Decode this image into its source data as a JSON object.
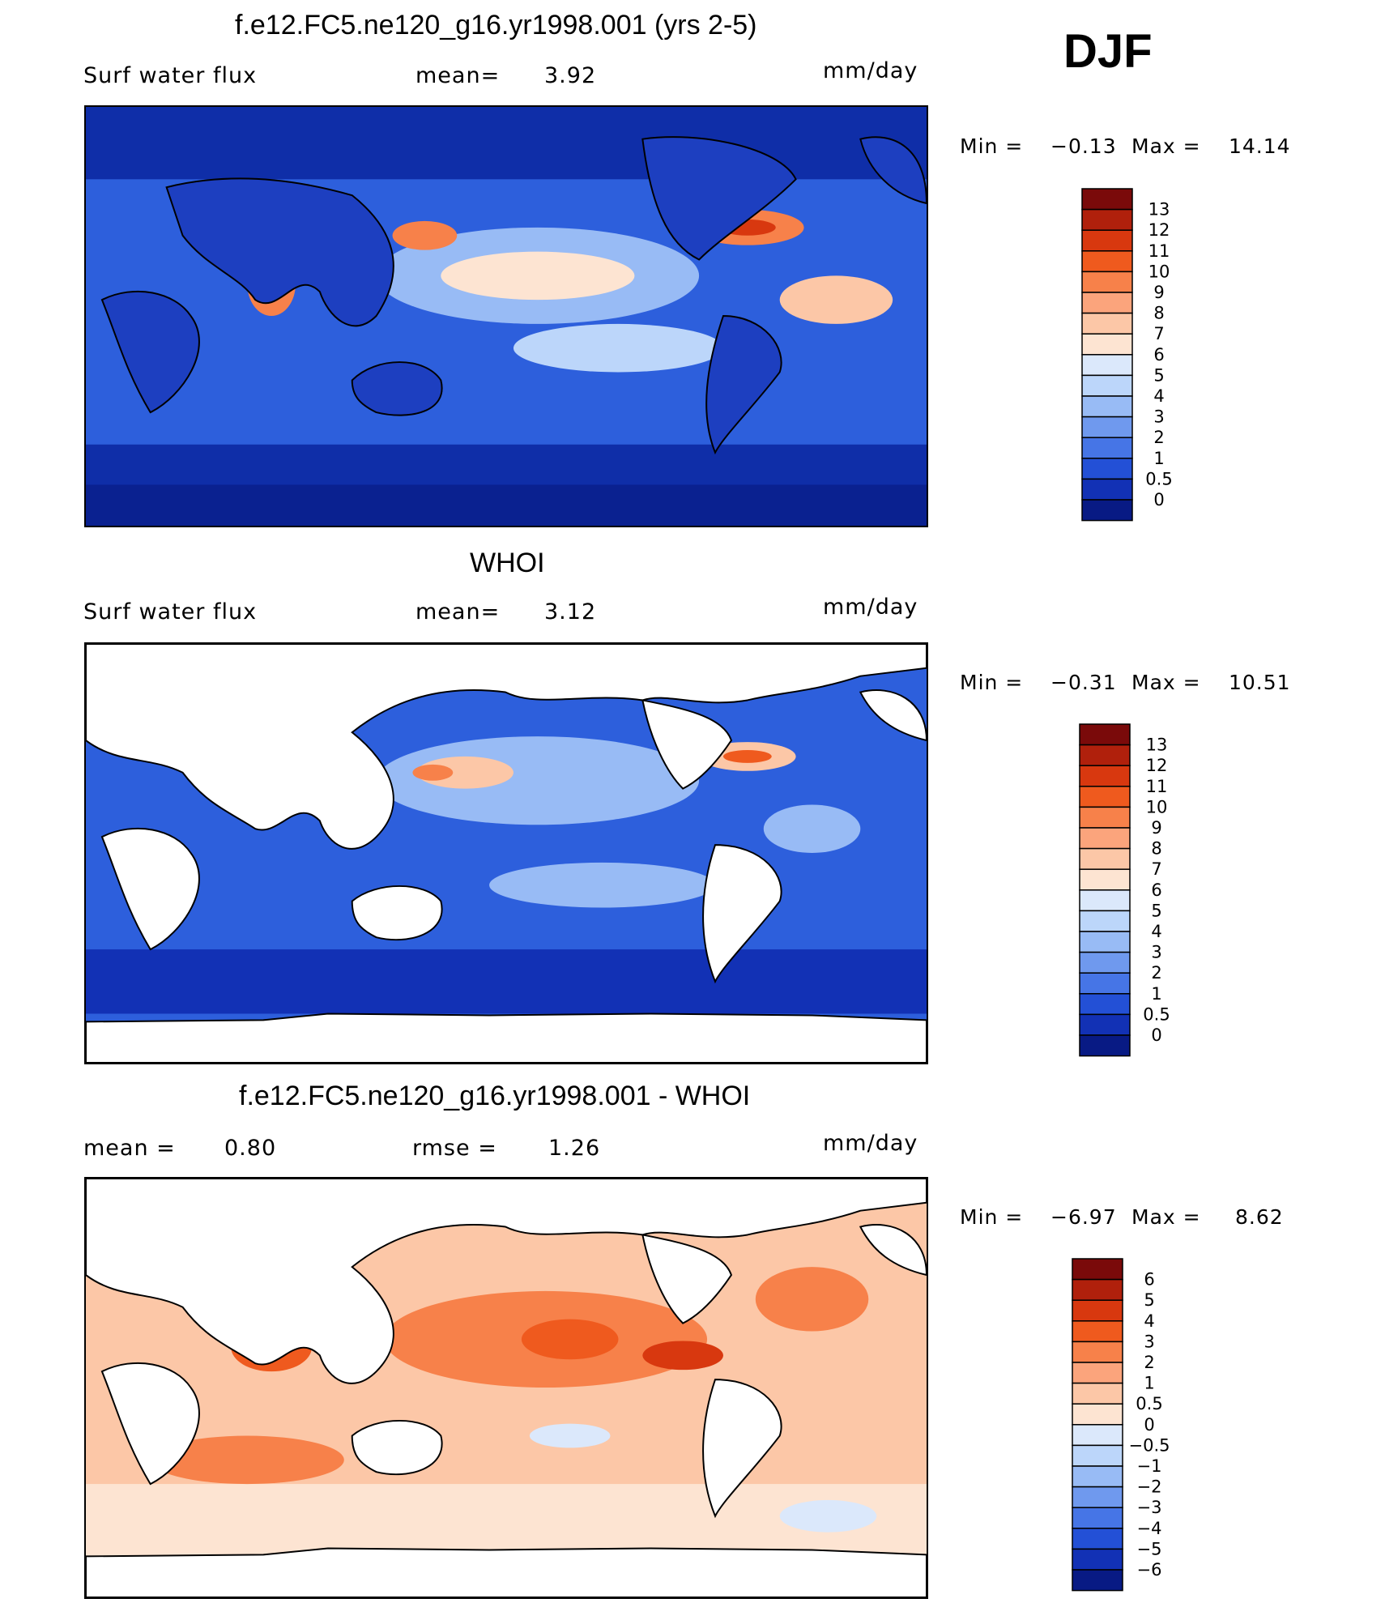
{
  "season": "DJF",
  "panels": [
    {
      "title": "f.e12.FC5.ne120_g16.yr1998.001 (yrs 2-5)",
      "left_label": "Surf  water  flux",
      "mid_label": "mean=",
      "mid_value": "3.92",
      "units": "mm/day",
      "min_label": "Min  =",
      "min_value": "−0.13",
      "max_label": "Max  =",
      "max_value": "14.14",
      "colorbar": {
        "labels": [
          "13",
          "12",
          "11",
          "10",
          "9",
          "8",
          "7",
          "6",
          "5",
          "4",
          "3",
          "2",
          "1",
          "0.5",
          "0"
        ],
        "colors": [
          "#7a0a0a",
          "#b0200c",
          "#d8380f",
          "#ef5a1e",
          "#f7814a",
          "#fba47c",
          "#fcc7a7",
          "#fde4d2",
          "#dbe8fb",
          "#bcd6fa",
          "#98bbf5",
          "#6f99ee",
          "#4675e6",
          "#2350d6",
          "#1231b5",
          "#081a84"
        ]
      },
      "map_fill": "model"
    },
    {
      "title": "WHOI",
      "left_label": "Surf  water  flux",
      "mid_label": "mean=",
      "mid_value": "3.12",
      "units": "mm/day",
      "min_label": "Min  =",
      "min_value": "−0.31",
      "max_label": "Max  =",
      "max_value": "10.51",
      "colorbar": {
        "labels": [
          "13",
          "12",
          "11",
          "10",
          "9",
          "8",
          "7",
          "6",
          "5",
          "4",
          "3",
          "2",
          "1",
          "0.5",
          "0"
        ],
        "colors": [
          "#7a0a0a",
          "#b0200c",
          "#d8380f",
          "#ef5a1e",
          "#f7814a",
          "#fba47c",
          "#fcc7a7",
          "#fde4d2",
          "#dbe8fb",
          "#bcd6fa",
          "#98bbf5",
          "#6f99ee",
          "#4675e6",
          "#2350d6",
          "#1231b5",
          "#081a84"
        ]
      },
      "map_fill": "obs"
    },
    {
      "title": "f.e12.FC5.ne120_g16.yr1998.001 - WHOI",
      "left_label": "mean  =",
      "left_value": "0.80",
      "mid_label": "rmse  =",
      "mid_value": "1.26",
      "units": "mm/day",
      "min_label": "Min  =",
      "min_value": "−6.97",
      "max_label": "Max  =",
      "max_value": "8.62",
      "colorbar": {
        "labels": [
          "6",
          "5",
          "4",
          "3",
          "2",
          "1",
          "0.5",
          "0",
          "−0.5",
          "−1",
          "−2",
          "−3",
          "−4",
          "−5",
          "−6"
        ],
        "colors": [
          "#7a0a0a",
          "#b0200c",
          "#d8380f",
          "#ef5a1e",
          "#f7814a",
          "#fba47c",
          "#fcc7a7",
          "#fde4d2",
          "#dbe8fb",
          "#bcd6fa",
          "#98bbf5",
          "#6f99ee",
          "#4675e6",
          "#2350d6",
          "#1231b5",
          "#081a84"
        ]
      },
      "map_fill": "diff"
    }
  ]
}
